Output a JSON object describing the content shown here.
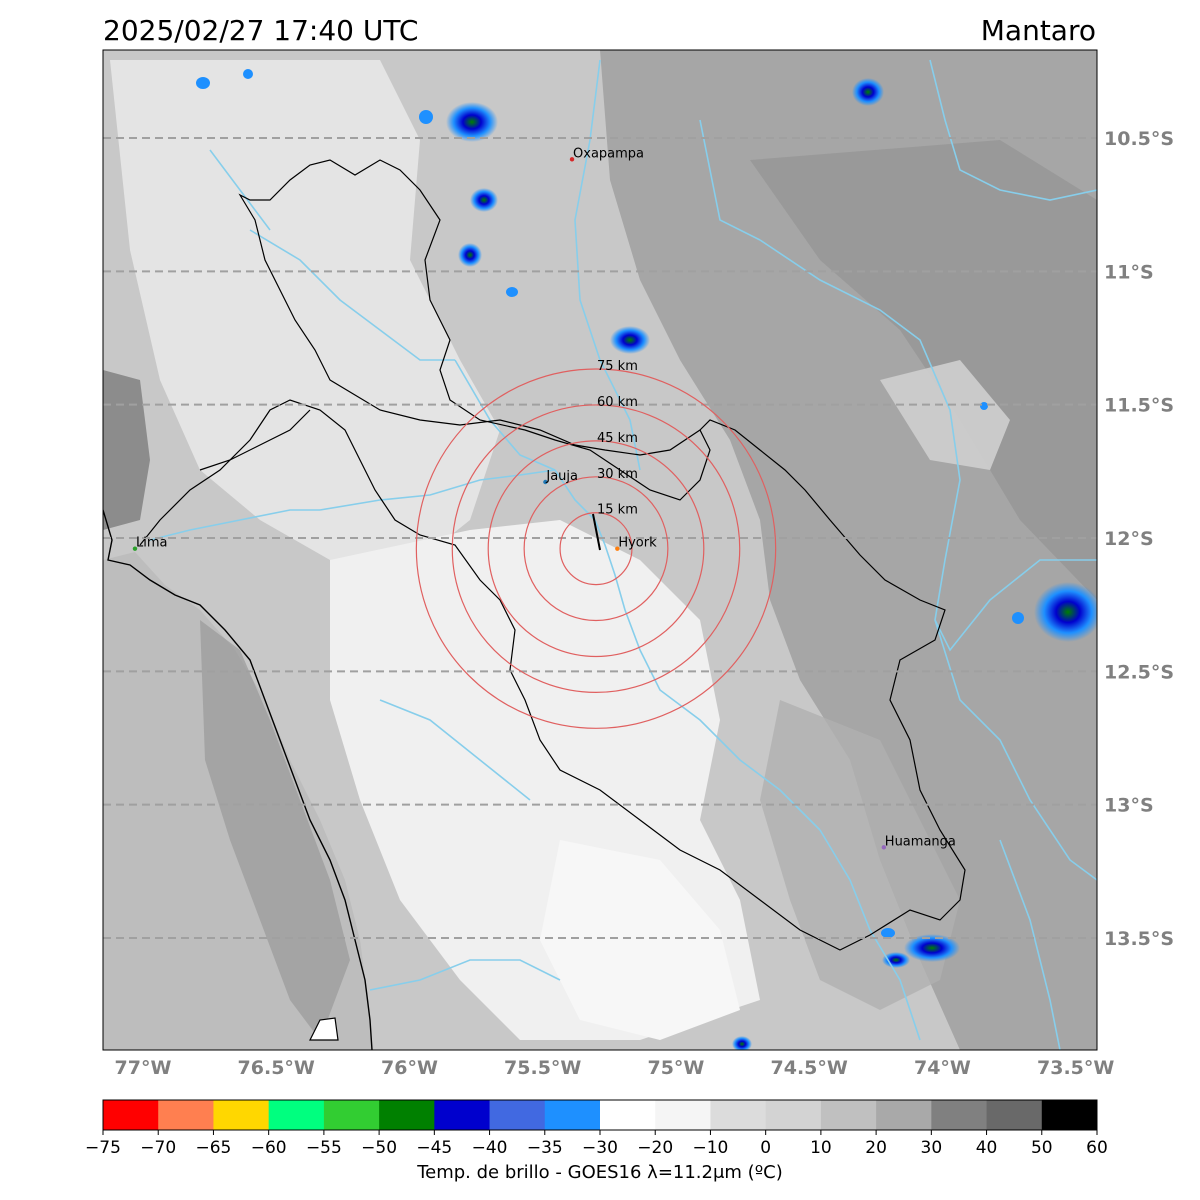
{
  "header": {
    "timestamp": "2025/02/27 17:40 UTC",
    "region": "Mantaro"
  },
  "map": {
    "lon_range": [
      -77.15,
      -73.42
    ],
    "lat_range": [
      -13.92,
      -10.17
    ],
    "lon_ticks": [
      {
        "value": -77.0,
        "label": "77°W"
      },
      {
        "value": -76.5,
        "label": "76.5°W"
      },
      {
        "value": -76.0,
        "label": "76°W"
      },
      {
        "value": -75.5,
        "label": "75.5°W"
      },
      {
        "value": -75.0,
        "label": "75°W"
      },
      {
        "value": -74.5,
        "label": "74.5°W"
      },
      {
        "value": -74.0,
        "label": "74°W"
      },
      {
        "value": -73.5,
        "label": "73.5°W"
      }
    ],
    "lat_ticks": [
      {
        "value": -10.5,
        "label": "10.5°S"
      },
      {
        "value": -11.0,
        "label": "11°S"
      },
      {
        "value": -11.5,
        "label": "11.5°S"
      },
      {
        "value": -12.0,
        "label": "12°S"
      },
      {
        "value": -12.5,
        "label": "12.5°S"
      },
      {
        "value": -13.0,
        "label": "13°S"
      },
      {
        "value": -13.5,
        "label": "13.5°S"
      }
    ],
    "cities": [
      {
        "name": "Oxapampa",
        "lon": -75.39,
        "lat": -10.58,
        "color": "#d62728"
      },
      {
        "name": "Jauja",
        "lon": -75.49,
        "lat": -11.79,
        "color": "#1f77b4"
      },
      {
        "name": "Hyork",
        "lon": -75.22,
        "lat": -12.04,
        "color": "#ff7f0e"
      },
      {
        "name": "Lima",
        "lon": -77.03,
        "lat": -12.04,
        "color": "#2ca02c"
      },
      {
        "name": "Huamanga",
        "lon": -74.22,
        "lat": -13.16,
        "color": "#9467bd"
      }
    ],
    "radar_center": {
      "lon": -75.3,
      "lat": -12.04
    },
    "range_rings": [
      {
        "km": 15,
        "label": "15 km"
      },
      {
        "km": 30,
        "label": "30 km"
      },
      {
        "km": 45,
        "label": "45 km"
      },
      {
        "km": 60,
        "label": "60 km"
      },
      {
        "km": 75,
        "label": "75 km"
      }
    ],
    "ring_color": "#e06060",
    "river_color": "#87ceeb",
    "grid_color": "#a0a0a0"
  },
  "colorbar": {
    "ticks": [
      "−75",
      "−70",
      "−65",
      "−60",
      "−55",
      "−50",
      "−45",
      "−40",
      "−35",
      "−30",
      "−20",
      "−10",
      "0",
      "10",
      "20",
      "30",
      "40",
      "50",
      "60"
    ],
    "colors": [
      "#ff0000",
      "#ff7f50",
      "#ffd700",
      "#00ff7f",
      "#32cd32",
      "#008000",
      "#0000cd",
      "#4169e1",
      "#1e90ff",
      "#ffffff",
      "#f5f5f5",
      "#dcdcdc",
      "#d3d3d3",
      "#c0c0c0",
      "#a9a9a9",
      "#808080",
      "#696969",
      "#000000"
    ],
    "label": "Temp. de brillo - GOES16 λ=11.2μm (ºC)"
  }
}
